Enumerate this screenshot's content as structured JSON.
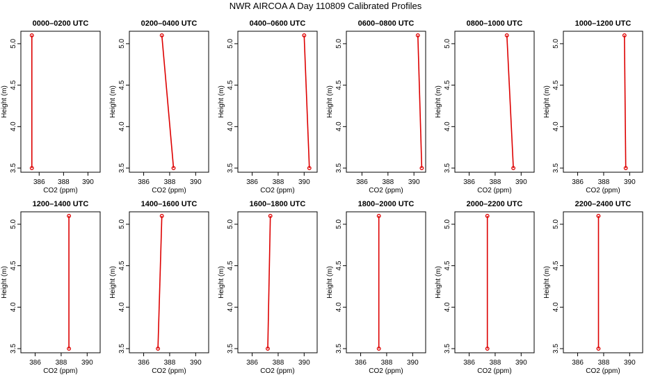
{
  "title": "NWR AIRCOA A  Day 110809  Calibrated Profiles",
  "style": {
    "line_color": "#dd0000",
    "marker_color": "#dd0000",
    "axis_color": "#000000"
  },
  "chart_data": [
    {
      "type": "line",
      "title": "0000–0200 UTC",
      "xlabel": "CO2 (ppm)",
      "ylabel": "Height (m)",
      "xlim": [
        384.5,
        391.0
      ],
      "ylim": [
        3.45,
        5.15
      ],
      "xticks": [
        386,
        388,
        390
      ],
      "yticks": [
        3.5,
        4.0,
        4.5,
        5.0
      ],
      "series": [
        {
          "x": [
            385.4,
            385.4
          ],
          "y": [
            3.5,
            5.1
          ]
        }
      ]
    },
    {
      "type": "line",
      "title": "0200–0400 UTC",
      "xlabel": "CO2 (ppm)",
      "ylabel": "Height (m)",
      "xlim": [
        384.9,
        391.0
      ],
      "ylim": [
        3.45,
        5.15
      ],
      "xticks": [
        386,
        388,
        390
      ],
      "yticks": [
        3.5,
        4.0,
        4.5,
        5.0
      ],
      "series": [
        {
          "x": [
            388.3,
            387.4
          ],
          "y": [
            3.5,
            5.1
          ]
        }
      ]
    },
    {
      "type": "line",
      "title": "0400–0600 UTC",
      "xlabel": "CO2 (ppm)",
      "ylabel": "Height (m)",
      "xlim": [
        384.9,
        391.0
      ],
      "ylim": [
        3.45,
        5.15
      ],
      "xticks": [
        386,
        388,
        390
      ],
      "yticks": [
        3.5,
        4.0,
        4.5,
        5.0
      ],
      "series": [
        {
          "x": [
            390.4,
            390.0
          ],
          "y": [
            3.5,
            5.1
          ]
        }
      ]
    },
    {
      "type": "line",
      "title": "0600–0800 UTC",
      "xlabel": "CO2 (ppm)",
      "ylabel": "Height (m)",
      "xlim": [
        384.8,
        390.9
      ],
      "ylim": [
        3.45,
        5.15
      ],
      "xticks": [
        386,
        388,
        390
      ],
      "yticks": [
        3.5,
        4.0,
        4.5,
        5.0
      ],
      "series": [
        {
          "x": [
            390.6,
            390.3
          ],
          "y": [
            3.5,
            5.1
          ]
        }
      ]
    },
    {
      "type": "line",
      "title": "0800–1000 UTC",
      "xlabel": "CO2 (ppm)",
      "ylabel": "Height (m)",
      "xlim": [
        384.9,
        391.0
      ],
      "ylim": [
        3.45,
        5.15
      ],
      "xticks": [
        386,
        388,
        390
      ],
      "yticks": [
        3.5,
        4.0,
        4.5,
        5.0
      ],
      "series": [
        {
          "x": [
            389.4,
            388.9
          ],
          "y": [
            3.5,
            5.1
          ]
        }
      ]
    },
    {
      "type": "line",
      "title": "1000–1200 UTC",
      "xlabel": "CO2 (ppm)",
      "ylabel": "Height (m)",
      "xlim": [
        384.9,
        391.0
      ],
      "ylim": [
        3.45,
        5.15
      ],
      "xticks": [
        386,
        388,
        390
      ],
      "yticks": [
        3.5,
        4.0,
        4.5,
        5.0
      ],
      "series": [
        {
          "x": [
            389.7,
            389.6
          ],
          "y": [
            3.5,
            5.1
          ]
        }
      ]
    },
    {
      "type": "line",
      "title": "1200–1400 UTC",
      "xlabel": "CO2 (ppm)",
      "ylabel": "Height (m)",
      "xlim": [
        384.9,
        391.0
      ],
      "ylim": [
        3.45,
        5.15
      ],
      "xticks": [
        386,
        388,
        390
      ],
      "yticks": [
        3.5,
        4.0,
        4.5,
        5.0
      ],
      "series": [
        {
          "x": [
            388.6,
            388.6
          ],
          "y": [
            3.5,
            5.1
          ]
        }
      ]
    },
    {
      "type": "line",
      "title": "1400–1600 UTC",
      "xlabel": "CO2 (ppm)",
      "ylabel": "Height (m)",
      "xlim": [
        384.9,
        391.0
      ],
      "ylim": [
        3.45,
        5.15
      ],
      "xticks": [
        386,
        388,
        390
      ],
      "yticks": [
        3.5,
        4.0,
        4.5,
        5.0
      ],
      "series": [
        {
          "x": [
            387.1,
            387.4
          ],
          "y": [
            3.5,
            5.1
          ]
        }
      ]
    },
    {
      "type": "line",
      "title": "1600–1800 UTC",
      "xlabel": "CO2 (ppm)",
      "ylabel": "Height (m)",
      "xlim": [
        384.9,
        391.0
      ],
      "ylim": [
        3.45,
        5.15
      ],
      "xticks": [
        386,
        388,
        390
      ],
      "yticks": [
        3.5,
        4.0,
        4.5,
        5.0
      ],
      "series": [
        {
          "x": [
            387.2,
            387.4
          ],
          "y": [
            3.5,
            5.1
          ]
        }
      ]
    },
    {
      "type": "line",
      "title": "1800–2000 UTC",
      "xlabel": "CO2 (ppm)",
      "ylabel": "Height (m)",
      "xlim": [
        384.9,
        391.0
      ],
      "ylim": [
        3.45,
        5.15
      ],
      "xticks": [
        386,
        388,
        390
      ],
      "yticks": [
        3.5,
        4.0,
        4.5,
        5.0
      ],
      "series": [
        {
          "x": [
            387.4,
            387.4
          ],
          "y": [
            3.5,
            5.1
          ]
        }
      ]
    },
    {
      "type": "line",
      "title": "2000–2200 UTC",
      "xlabel": "CO2 (ppm)",
      "ylabel": "Height (m)",
      "xlim": [
        384.9,
        391.0
      ],
      "ylim": [
        3.45,
        5.15
      ],
      "xticks": [
        386,
        388,
        390
      ],
      "yticks": [
        3.5,
        4.0,
        4.5,
        5.0
      ],
      "series": [
        {
          "x": [
            387.4,
            387.4
          ],
          "y": [
            3.5,
            5.1
          ]
        }
      ]
    },
    {
      "type": "line",
      "title": "2200–2400 UTC",
      "xlabel": "CO2 (ppm)",
      "ylabel": "Height (m)",
      "xlim": [
        384.9,
        391.0
      ],
      "ylim": [
        3.45,
        5.15
      ],
      "xticks": [
        386,
        388,
        390
      ],
      "yticks": [
        3.5,
        4.0,
        4.5,
        5.0
      ],
      "series": [
        {
          "x": [
            387.6,
            387.6
          ],
          "y": [
            3.5,
            5.1
          ]
        }
      ]
    }
  ]
}
